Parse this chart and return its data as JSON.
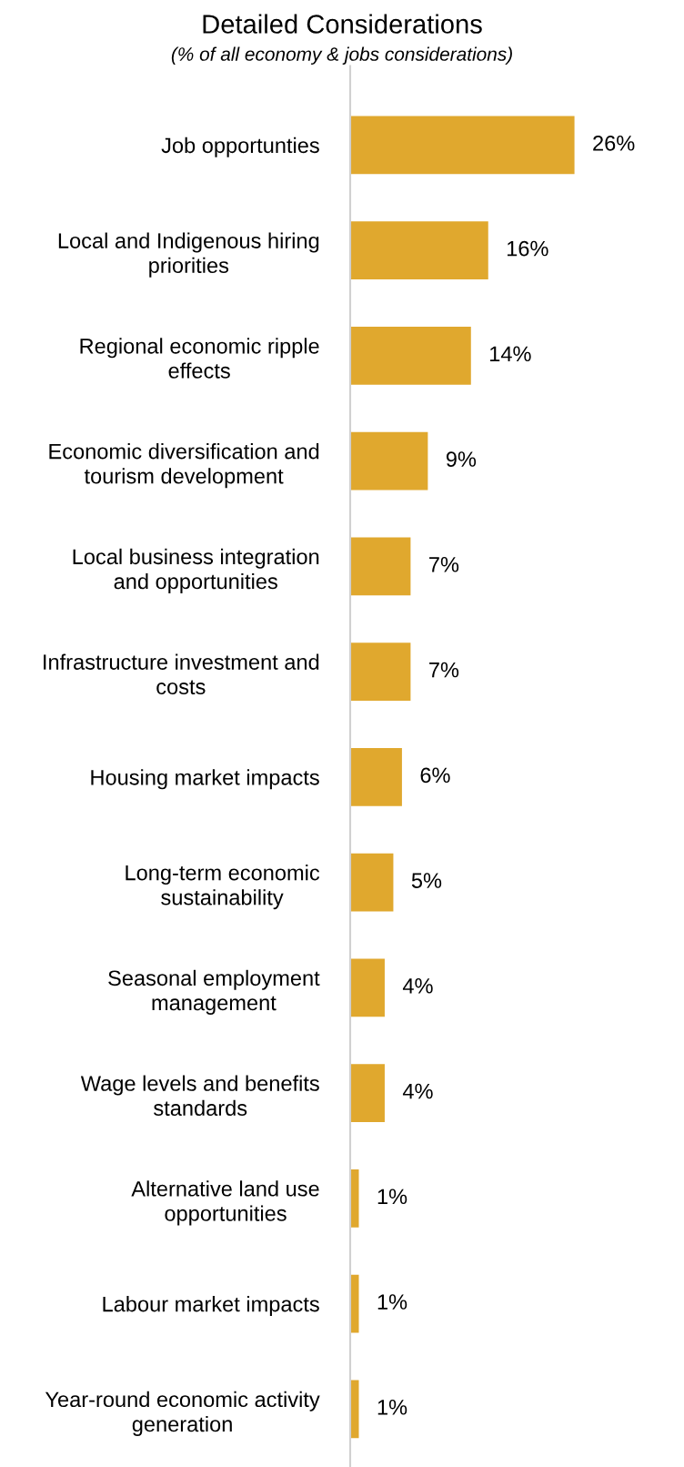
{
  "chart_data": {
    "type": "bar",
    "orientation": "horizontal",
    "title": "Detailed Considerations",
    "subtitle": "(% of all economy & jobs considerations)",
    "categories": [
      "Job opportunties",
      "Local and Indigenous hiring\npriorities",
      "Regional economic ripple\neffects",
      "Economic diversification and\ntourism development",
      "Local business integration\nand opportunities",
      "Infrastructure investment and\ncosts",
      "Housing market impacts",
      "Long-term economic\nsustainability",
      "Seasonal employment\nmanagement",
      "Wage levels and benefits\nstandards",
      "Alternative land use\nopportunities",
      "Labour market impacts",
      "Year-round economic activity\ngeneration"
    ],
    "values": [
      26,
      16,
      14,
      9,
      7,
      7,
      6,
      5,
      4,
      4,
      1,
      1,
      1
    ],
    "value_labels": [
      "26%",
      "16%",
      "14%",
      "9%",
      "7%",
      "7%",
      "6%",
      "5%",
      "4%",
      "4%",
      "1%",
      "1%",
      "1%"
    ],
    "color": "#e0a82e",
    "grid": false,
    "legend": false
  }
}
